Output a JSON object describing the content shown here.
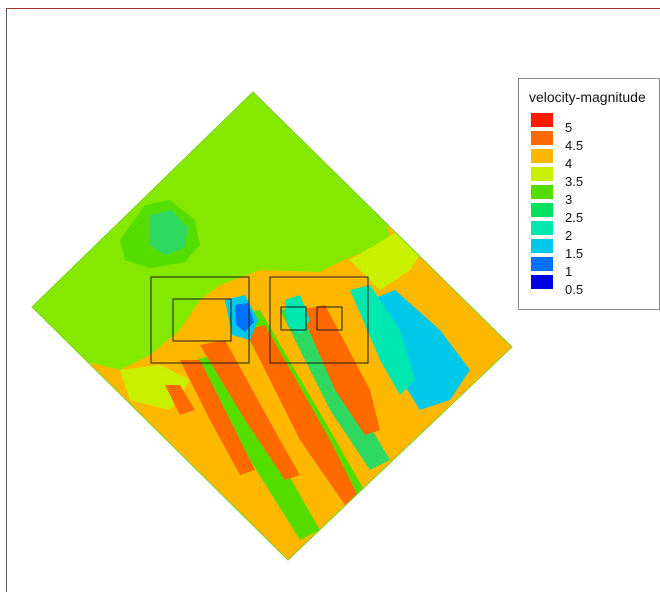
{
  "legend": {
    "title": "velocity-magnitude",
    "levels": [
      {
        "label": "5",
        "color": "#ff1a00"
      },
      {
        "label": "4.5",
        "color": "#ff6a00"
      },
      {
        "label": "4",
        "color": "#ffb800"
      },
      {
        "label": "3.5",
        "color": "#c8f000"
      },
      {
        "label": "3",
        "color": "#55dd00"
      },
      {
        "label": "2.5",
        "color": "#00e060"
      },
      {
        "label": "2",
        "color": "#00e8b0"
      },
      {
        "label": "1.5",
        "color": "#00c8e8"
      },
      {
        "label": "1",
        "color": "#0070ff"
      },
      {
        "label": "0.5",
        "color": "#0000e0"
      }
    ]
  },
  "colors": {
    "frame_top": "#b03030",
    "background": "#ffffff"
  }
}
